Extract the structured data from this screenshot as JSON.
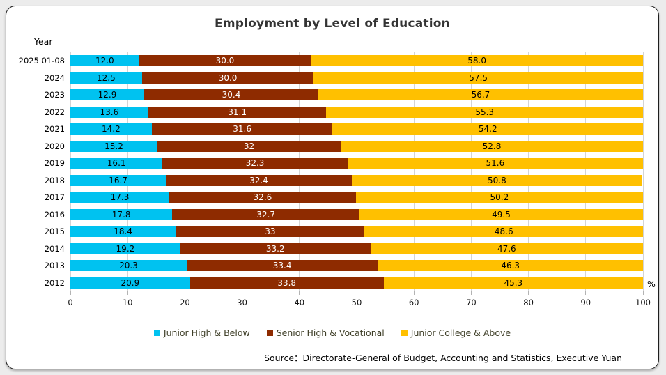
{
  "title": "Employment by Level of Education",
  "year_axis_label": "Year",
  "percent_label": "%",
  "source": "Source：Directorate-General of Budget, Accounting and Statistics, Executive Yuan",
  "legend": [
    {
      "label": "Junior High & Below",
      "color": "#00C2F0"
    },
    {
      "label": "Senior High & Vocational",
      "color": "#8E2B00"
    },
    {
      "label": "Junior College & Above",
      "color": "#FFC000"
    }
  ],
  "chart_data": {
    "type": "bar",
    "orientation": "horizontal",
    "stacked": true,
    "title": "Employment by Level of Education",
    "xlabel": "%",
    "ylabel": "Year",
    "xlim": [
      0,
      100
    ],
    "xticks": [
      0,
      10,
      20,
      30,
      40,
      50,
      60,
      70,
      80,
      90,
      100
    ],
    "grid": true,
    "legend_position": "bottom",
    "categories": [
      "2025 01-08",
      "2024",
      "2023",
      "2022",
      "2021",
      "2020",
      "2019",
      "2018",
      "2017",
      "2016",
      "2015",
      "2014",
      "2013",
      "2012"
    ],
    "series": [
      {
        "name": "Junior High & Below",
        "color": "#00C2F0",
        "label_color": "#000000",
        "values": [
          12.0,
          12.5,
          12.9,
          13.6,
          14.2,
          15.2,
          16.1,
          16.7,
          17.3,
          17.8,
          18.4,
          19.2,
          20.3,
          20.9
        ],
        "labels": [
          "12.0",
          "12.5",
          "12.9",
          "13.6",
          "14.2",
          "15.2",
          "16.1",
          "16.7",
          "17.3",
          "17.8",
          "18.4",
          "19.2",
          "20.3",
          "20.9"
        ]
      },
      {
        "name": "Senior High & Vocational",
        "color": "#8E2B00",
        "label_color": "#FFFFFF",
        "values": [
          30.0,
          30.0,
          30.4,
          31.1,
          31.6,
          32,
          32.3,
          32.4,
          32.6,
          32.7,
          33,
          33.2,
          33.4,
          33.8
        ],
        "labels": [
          "30.0",
          "30.0",
          "30.4",
          "31.1",
          "31.6",
          "32",
          "32.3",
          "32.4",
          "32.6",
          "32.7",
          "33",
          "33.2",
          "33.4",
          "33.8"
        ]
      },
      {
        "name": "Junior College & Above",
        "color": "#FFC000",
        "label_color": "#000000",
        "values": [
          58.0,
          57.5,
          56.7,
          55.3,
          54.2,
          52.8,
          51.6,
          50.8,
          50.2,
          49.5,
          48.6,
          47.6,
          46.3,
          45.3
        ],
        "labels": [
          "58.0",
          "57.5",
          "56.7",
          "55.3",
          "54.2",
          "52.8",
          "51.6",
          "50.8",
          "50.2",
          "49.5",
          "48.6",
          "47.6",
          "46.3",
          "45.3"
        ]
      }
    ]
  }
}
